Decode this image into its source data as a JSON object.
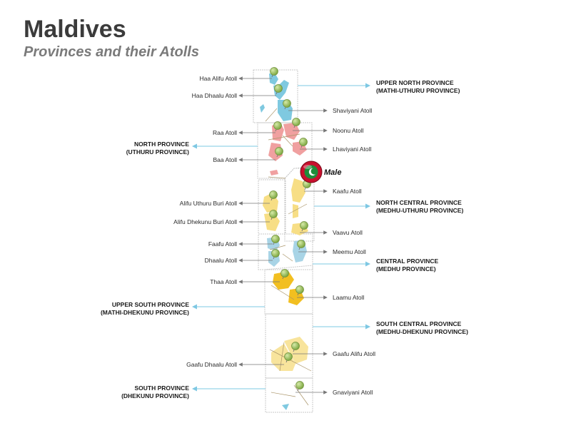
{
  "header": {
    "title": "Maldives",
    "subtitle": "Provinces and their Atolls"
  },
  "colors": {
    "upper_north": "#7fc9e0",
    "north": "#f0a0a0",
    "north_central": "#f7de85",
    "central": "#a8d4e6",
    "upper_south": "#f2bf20",
    "south_central": "#f8e49c",
    "south": "#7fc9e0",
    "pin": "#9bc25a",
    "province_arrow": "#7ec8e3",
    "atoll_arrow": "#777777"
  },
  "icons": {
    "pin": "map-pin-icon",
    "capital": "maldives-flag-icon"
  },
  "capital": {
    "name": "Male"
  },
  "atolls": [
    "Haa Alifu Atoll",
    "Haa Dhaalu Atoll",
    "Shaviyani Atoll",
    "Raa Atoll",
    "Noonu Atoll",
    "Lhaviyani Atoll",
    "Baa Atoll",
    "Kaafu Atoll",
    "Alifu Uthuru Buri Atoll",
    "Alifu Dhekunu Buri Atoll",
    "Vaavu Atoll",
    "Faafu Atoll",
    "Meemu Atoll",
    "Dhaalu Atoll",
    "Thaa Atoll",
    "Laamu Atoll",
    "Gaafu Alifu Atoll",
    "Gaafu Dhaalu Atoll",
    "Gnaviyani Atoll"
  ],
  "provinces": [
    {
      "line1": "UPPER NORTH PROVINCE",
      "line2": "(MATHI-UTHURU PROVINCE)"
    },
    {
      "line1": "NORTH PROVINCE",
      "line2": "(UTHURU PROVINCE)"
    },
    {
      "line1": "NORTH CENTRAL PROVINCE",
      "line2": "(MEDHU-UTHURU PROVINCE)"
    },
    {
      "line1": "CENTRAL PROVINCE",
      "line2": "(MEDHU PROVINCE)"
    },
    {
      "line1": "UPPER SOUTH PROVINCE",
      "line2": "(MATHI-DHEKUNU PROVINCE)"
    },
    {
      "line1": "SOUTH CENTRAL PROVINCE",
      "line2": "(MEDHU-DHEKUNU PROVINCE)"
    },
    {
      "line1": "SOUTH PROVINCE",
      "line2": "(DHEKUNU PROVINCE)"
    }
  ]
}
